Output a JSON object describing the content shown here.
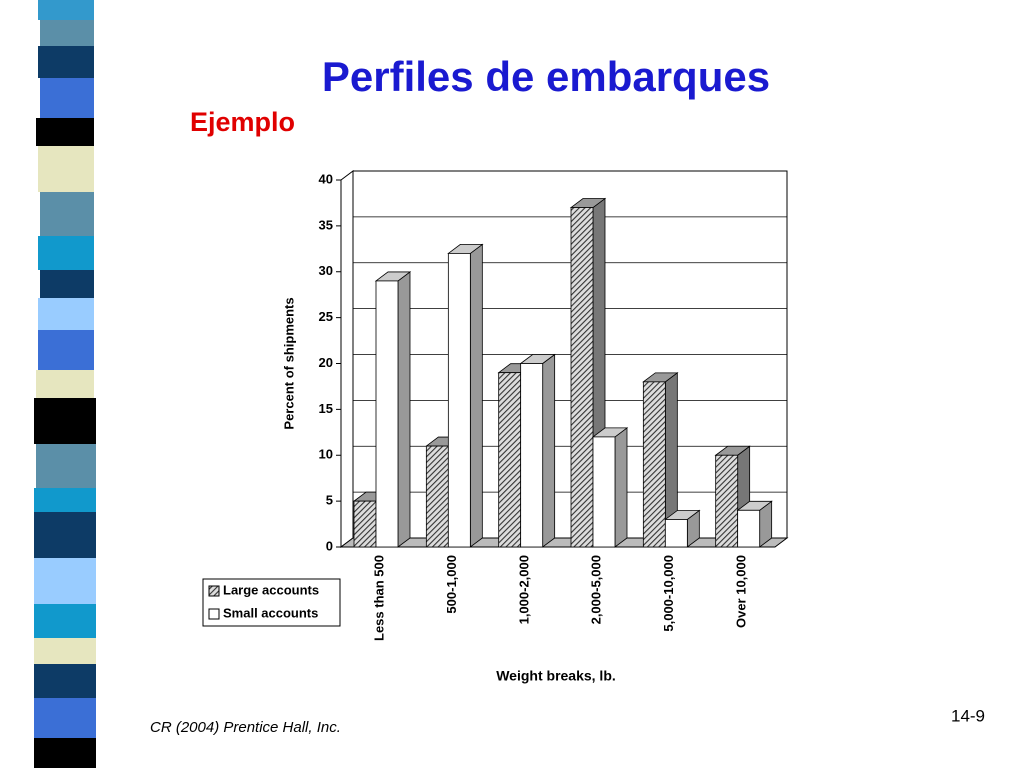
{
  "slide": {
    "title": "Perfiles de embarques",
    "subtitle": "Ejemplo",
    "footer": "CR (2004) Prentice Hall, Inc.",
    "page_number": "14-9"
  },
  "chart_data": {
    "type": "bar3d",
    "x_label": "Weight breaks, lb.",
    "y_label": "Percent of shipments",
    "categories": [
      "Less than 500",
      "500-1,000",
      "1,000-2,000",
      "2,000-5,000",
      "5,000-10,000",
      "Over 10,000"
    ],
    "series": [
      {
        "name": "Large accounts",
        "color": "#555555",
        "values": [
          5,
          11,
          19,
          37,
          18,
          10
        ]
      },
      {
        "name": "Small accounts",
        "color": "#ffffff",
        "values": [
          29,
          32,
          20,
          12,
          3,
          4
        ]
      }
    ],
    "ylim": [
      0,
      40
    ],
    "yticks": [
      0,
      5,
      10,
      15,
      20,
      25,
      30,
      35,
      40
    ],
    "grid": true,
    "legend": "bottom-left"
  }
}
